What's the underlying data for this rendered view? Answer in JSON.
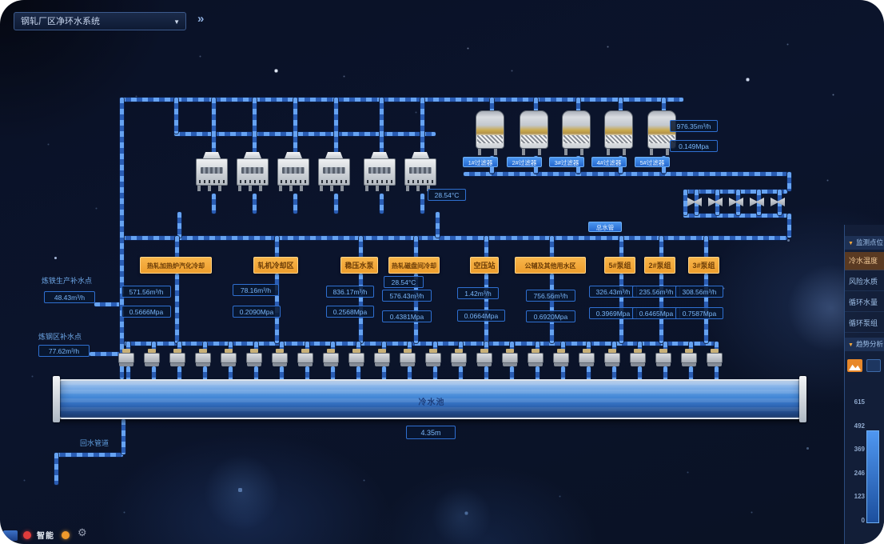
{
  "header": {
    "system_selector": "钢轧厂区净环水系统",
    "collapse_icon": "»",
    "caret_icon": "▼"
  },
  "filters": {
    "labels": [
      "1#过滤器",
      "2#过滤器",
      "3#过滤器",
      "4#过滤器",
      "5#过滤器"
    ],
    "flow": "976.35m³/h",
    "pressure": "0.149Mpa"
  },
  "cooling": {
    "temperature": "28.54°C"
  },
  "main_pipe_badge": "总水管",
  "consumers": [
    {
      "name": "热轧加热炉汽化冷却",
      "values": [
        "571.56m³/h",
        "0.5666Mpa"
      ]
    },
    {
      "name": "轧机冷却区",
      "values": [
        "78.16m³/h",
        "0.2090Mpa"
      ]
    },
    {
      "name": "稳压水泵",
      "values": [
        "836.17m³/h",
        "0.2568Mpa"
      ]
    },
    {
      "name": "热轧磁盘间冷却",
      "values": [
        "28.54°C",
        "576.43m³/h",
        "0.4381Mpa"
      ]
    },
    {
      "name": "空压站",
      "values": [
        "1.42m³/h",
        "0.0664Mpa"
      ]
    },
    {
      "name": "公辅及其他用水区",
      "values": [
        "756.56m³/h",
        "0.6920Mpa"
      ]
    },
    {
      "name": "5#泵组",
      "values": [
        "326.43m³/h",
        "0.3969Mpa"
      ]
    },
    {
      "name": "2#泵组",
      "values": [
        "235.56m³/h",
        "0.6465Mpa"
      ]
    },
    {
      "name": "3#泵组",
      "values": [
        "308.56m³/h",
        "0.7587Mpa"
      ]
    }
  ],
  "makeup_points": [
    {
      "name": "炼铁生产补水点",
      "value": "48.43m³/h"
    },
    {
      "name": "炼钢区补水点",
      "value": "77.62m³/h"
    }
  ],
  "tank": {
    "name": "冷水池",
    "level": "4.35m"
  },
  "return_pipe_label": "回水管道",
  "right_panel": {
    "section1": "监测点位",
    "section2": "趋势分析",
    "caret_icon": "▼",
    "items": [
      "冷水温度",
      "风险水质",
      "循环水量",
      "循环泵组"
    ],
    "chart_axis": [
      "615",
      "492",
      "369",
      "246",
      "123",
      "0"
    ]
  },
  "taskbar": {
    "label": "智能",
    "gear_icon": "⚙"
  }
}
